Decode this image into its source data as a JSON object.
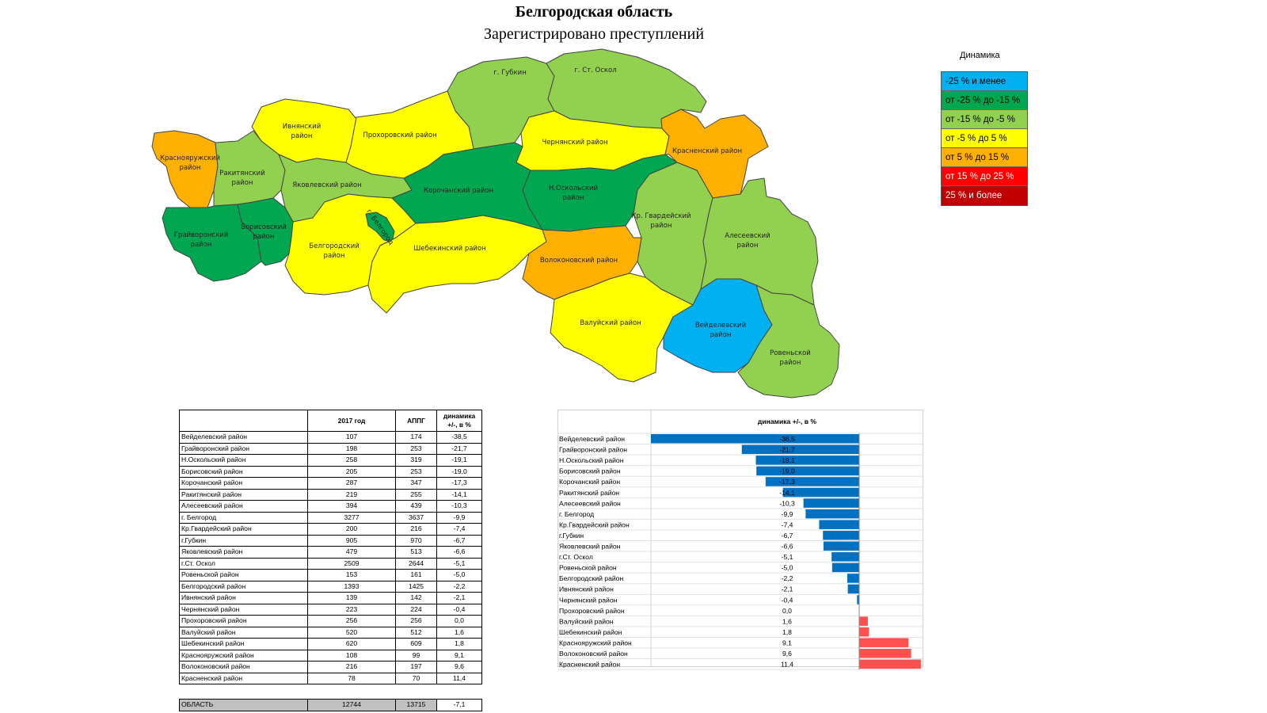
{
  "title": "Белгородская область",
  "subtitle": "Зарегистрировано преступлений",
  "legend": {
    "title": "Динамика",
    "items": [
      {
        "label": "-25 % и менее",
        "color": "#00b0f0"
      },
      {
        "label": "от -25 % до -15 %",
        "color": "#00a650"
      },
      {
        "label": "от -15 % до -5 %",
        "color": "#92d050"
      },
      {
        "label": "от -5 % до 5 %",
        "color": "#ffff00"
      },
      {
        "label": "от 5 % до 15 %",
        "color": "#ffb000"
      },
      {
        "label": "от 15 % до 25 %",
        "color": "#ff0000"
      },
      {
        "label": "25 % и более",
        "color": "#c00000"
      }
    ]
  },
  "map_labels": {
    "gubkin": "г. Губкин",
    "stoskol": "г. Ст. Оскол",
    "ivnya1": "Ивнянский",
    "ivnya2": "район",
    "prokh": "Прохоровский район",
    "chern": "Чернянский район",
    "krasnen": "Красненский район",
    "krasnoyar1": "Краснояружский",
    "krasnoyar2": "район",
    "rakit1": "Ракитянский",
    "rakit2": "район",
    "yakov": "Яковлевский район",
    "koroch": "Корочанский район",
    "noskol1": "Н.Оскольский",
    "noskol2": "район",
    "krgv1": "Кр. Гвардейский",
    "krgv2": "район",
    "alek1": "Алесеевский",
    "alek2": "район",
    "graiv1": "Грайворонский",
    "graiv2": "район",
    "boris1": "Борисовский",
    "boris2": "район",
    "belgorod": "г. Белгород",
    "belrn1": "Белгородский",
    "belrn2": "район",
    "shebek": "Шебекинский район",
    "volok": "Волоконовский район",
    "valuy": "Валуйский район",
    "veid1": "Вейделевский",
    "veid2": "район",
    "rov1": "Ровеньской",
    "rov2": "район"
  },
  "table": {
    "headers": {
      "col2": "2017 год",
      "col3": "АППГ",
      "col4a": "динамика",
      "col4b": "+/-, в %"
    },
    "rows": [
      {
        "name": "Вейделевский район",
        "y2017": "107",
        "prev": "174",
        "dyn": "-38,5"
      },
      {
        "name": "Грайворонский район",
        "y2017": "198",
        "prev": "253",
        "dyn": "-21,7"
      },
      {
        "name": "Н.Оскольский район",
        "y2017": "258",
        "prev": "319",
        "dyn": "-19,1"
      },
      {
        "name": "Борисовский район",
        "y2017": "205",
        "prev": "253",
        "dyn": "-19,0"
      },
      {
        "name": "Корочанский район",
        "y2017": "287",
        "prev": "347",
        "dyn": "-17,3"
      },
      {
        "name": "Ракитянский район",
        "y2017": "219",
        "prev": "255",
        "dyn": "-14,1"
      },
      {
        "name": "Алесеевский район",
        "y2017": "394",
        "prev": "439",
        "dyn": "-10,3"
      },
      {
        "name": "г. Белгород",
        "y2017": "3277",
        "prev": "3637",
        "dyn": "-9,9"
      },
      {
        "name": "Кр.Гвардейский район",
        "y2017": "200",
        "prev": "216",
        "dyn": "-7,4"
      },
      {
        "name": "г.Губкин",
        "y2017": "905",
        "prev": "970",
        "dyn": "-6,7"
      },
      {
        "name": "Яковлевский район",
        "y2017": "479",
        "prev": "513",
        "dyn": "-6,6"
      },
      {
        "name": "г.Ст. Оскол",
        "y2017": "2509",
        "prev": "2644",
        "dyn": "-5,1"
      },
      {
        "name": "Ровеньской район",
        "y2017": "153",
        "prev": "161",
        "dyn": "-5,0"
      },
      {
        "name": "Белгородский район",
        "y2017": "1393",
        "prev": "1425",
        "dyn": "-2,2"
      },
      {
        "name": "Ивнянский район",
        "y2017": "139",
        "prev": "142",
        "dyn": "-2,1"
      },
      {
        "name": "Чернянский район",
        "y2017": "223",
        "prev": "224",
        "dyn": "-0,4"
      },
      {
        "name": "Прохоровский район",
        "y2017": "256",
        "prev": "256",
        "dyn": "0,0"
      },
      {
        "name": "Валуйский район",
        "y2017": "520",
        "prev": "512",
        "dyn": "1,6"
      },
      {
        "name": "Шебекинский район",
        "y2017": "620",
        "prev": "609",
        "dyn": "1,8"
      },
      {
        "name": "Краснояружский район",
        "y2017": "108",
        "prev": "99",
        "dyn": "9,1"
      },
      {
        "name": "Волоконовский район",
        "y2017": "216",
        "prev": "197",
        "dyn": "9,6"
      },
      {
        "name": "Красненский район",
        "y2017": "78",
        "prev": "70",
        "dyn": "11,4"
      }
    ],
    "total": {
      "name": "ОБЛАСТЬ",
      "y2017": "12744",
      "prev": "13715",
      "dyn": "-7,1"
    }
  },
  "chart_data": {
    "type": "bar",
    "orientation": "horizontal",
    "title": "динамика +/-, в %",
    "categories": [
      "Вейделевский район",
      "Грайворонский район",
      "Н.Оскольский район",
      "Борисовский район",
      "Корочанский район",
      "Ракитянский район",
      "Алесеевский район",
      "г. Белгород",
      "Кр.Гвардейский район",
      "г.Губкин",
      "Яковлевский район",
      "г.Ст. Оскол",
      "Ровеньской район",
      "Белгородский район",
      "Ивнянский район",
      "Чернянский район",
      "Прохоровский район",
      "Валуйский район",
      "Шебекинский район",
      "Краснояружский район",
      "Волоконовский район",
      "Красненский район"
    ],
    "values": [
      -38.5,
      -21.7,
      -19.1,
      -19.0,
      -17.3,
      -14.1,
      -10.3,
      -9.9,
      -7.4,
      -6.7,
      -6.6,
      -5.1,
      -5.0,
      -2.2,
      -2.1,
      -0.4,
      0.0,
      1.6,
      1.8,
      9.1,
      9.6,
      11.4
    ],
    "value_labels": [
      "-38,5",
      "-21,7",
      "-19,1",
      "-19,0",
      "-17,3",
      "-14,1",
      "-10,3",
      "-9,9",
      "-7,4",
      "-6,7",
      "-6,6",
      "-5,1",
      "-5,0",
      "-2,2",
      "-2,1",
      "-0,4",
      "0,0",
      "1,6",
      "1,8",
      "9,1",
      "9,6",
      "11,4"
    ],
    "colors": {
      "negative": "#0070c0",
      "positive": "#ff5050"
    },
    "xlim": [
      -38.5,
      11.4
    ]
  }
}
